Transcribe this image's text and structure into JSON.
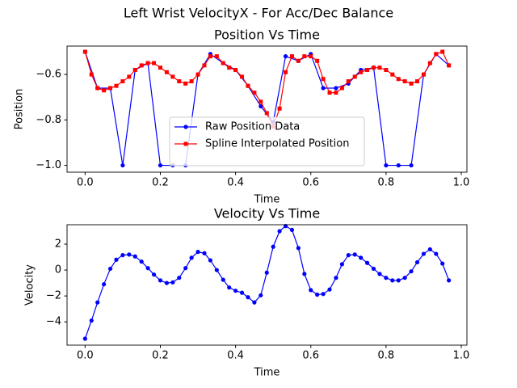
{
  "title": "Left Wrist VelocityX - For Acc/Dec Balance",
  "chart_data": [
    {
      "type": "line",
      "title": "Position Vs Time",
      "x_label": "Time",
      "y_label": "Position",
      "xlim": [
        -0.048,
        1.015
      ],
      "ylim": [
        -1.03,
        -0.475
      ],
      "xticks": [
        {
          "value": 0,
          "label": "0.0"
        },
        0.2,
        0.4,
        0.6,
        0.8,
        {
          "value": 1,
          "label": "1.0"
        }
      ],
      "yticks": [
        {
          "value": -1.0,
          "label": "−1.0"
        },
        {
          "value": -0.8,
          "label": "−0.8"
        },
        {
          "value": -0.6,
          "label": "−0.6"
        }
      ],
      "legend": "lower center",
      "series": [
        {
          "name": "Raw Position Data",
          "color": "#0000ff",
          "marker": "circle",
          "x": [
            0,
            0.033,
            0.067,
            0.1,
            0.133,
            0.167,
            0.2,
            0.233,
            0.267,
            0.3,
            0.333,
            0.367,
            0.4,
            0.433,
            0.467,
            0.5,
            0.533,
            0.567,
            0.6,
            0.633,
            0.667,
            0.7,
            0.733,
            0.767,
            0.8,
            0.833,
            0.867,
            0.9,
            0.933,
            0.967
          ],
          "values": [
            -0.5,
            -0.66,
            -0.66,
            -1.0,
            -0.58,
            -0.55,
            -1.0,
            -1.0,
            -1.0,
            -0.6,
            -0.51,
            -0.55,
            -0.58,
            -0.65,
            -0.74,
            -0.81,
            -0.52,
            -0.54,
            -0.51,
            -0.66,
            -0.66,
            -0.64,
            -0.58,
            -0.57,
            -1.0,
            -1.0,
            -1.0,
            -0.6,
            -0.51,
            -0.56
          ]
        },
        {
          "name": "Spline Interpolated Position",
          "color": "#ff0000",
          "marker": "square",
          "x": [
            0,
            0.017,
            0.033,
            0.05,
            0.067,
            0.083,
            0.1,
            0.117,
            0.133,
            0.15,
            0.167,
            0.183,
            0.2,
            0.217,
            0.233,
            0.25,
            0.267,
            0.283,
            0.3,
            0.317,
            0.333,
            0.35,
            0.367,
            0.383,
            0.4,
            0.417,
            0.433,
            0.45,
            0.467,
            0.483,
            0.5,
            0.517,
            0.533,
            0.55,
            0.567,
            0.583,
            0.6,
            0.617,
            0.633,
            0.65,
            0.667,
            0.683,
            0.7,
            0.717,
            0.733,
            0.75,
            0.767,
            0.783,
            0.8,
            0.817,
            0.833,
            0.85,
            0.867,
            0.883,
            0.9,
            0.917,
            0.933,
            0.95,
            0.967
          ],
          "values": [
            -0.5,
            -0.6,
            -0.66,
            -0.67,
            -0.66,
            -0.65,
            -0.63,
            -0.61,
            -0.58,
            -0.56,
            -0.55,
            -0.55,
            -0.57,
            -0.59,
            -0.61,
            -0.63,
            -0.64,
            -0.63,
            -0.6,
            -0.56,
            -0.52,
            -0.52,
            -0.55,
            -0.57,
            -0.58,
            -0.61,
            -0.65,
            -0.68,
            -0.72,
            -0.77,
            -0.83,
            -0.75,
            -0.59,
            -0.52,
            -0.54,
            -0.52,
            -0.52,
            -0.54,
            -0.62,
            -0.68,
            -0.68,
            -0.66,
            -0.63,
            -0.61,
            -0.59,
            -0.58,
            -0.57,
            -0.57,
            -0.58,
            -0.6,
            -0.62,
            -0.63,
            -0.64,
            -0.63,
            -0.6,
            -0.55,
            -0.51,
            -0.5,
            -0.56
          ]
        }
      ]
    },
    {
      "type": "line",
      "title": "Velocity Vs Time",
      "x_label": "Time",
      "y_label": "Velocity",
      "xlim": [
        -0.048,
        1.015
      ],
      "ylim": [
        -5.8,
        3.5
      ],
      "xticks": [
        {
          "value": 0,
          "label": "0.0"
        },
        0.2,
        0.4,
        0.6,
        0.8,
        {
          "value": 1,
          "label": "1.0"
        }
      ],
      "yticks": [
        {
          "value": -4,
          "label": "−4"
        },
        {
          "value": -2,
          "label": "−2"
        },
        0,
        2
      ],
      "series": [
        {
          "color": "#0000ff",
          "marker": "circle",
          "x": [
            0,
            0.017,
            0.033,
            0.05,
            0.067,
            0.083,
            0.1,
            0.117,
            0.133,
            0.15,
            0.167,
            0.183,
            0.2,
            0.217,
            0.233,
            0.25,
            0.267,
            0.283,
            0.3,
            0.317,
            0.333,
            0.35,
            0.367,
            0.383,
            0.4,
            0.417,
            0.433,
            0.45,
            0.467,
            0.483,
            0.5,
            0.517,
            0.533,
            0.55,
            0.567,
            0.583,
            0.6,
            0.617,
            0.633,
            0.65,
            0.667,
            0.683,
            0.7,
            0.717,
            0.733,
            0.75,
            0.767,
            0.783,
            0.8,
            0.817,
            0.833,
            0.85,
            0.867,
            0.883,
            0.9,
            0.917,
            0.933,
            0.95,
            0.967
          ],
          "values": [
            -5.3,
            -3.9,
            -2.5,
            -1.1,
            0.1,
            0.8,
            1.15,
            1.2,
            1.05,
            0.65,
            0.15,
            -0.35,
            -0.8,
            -1.0,
            -0.95,
            -0.6,
            0.15,
            0.95,
            1.4,
            1.3,
            0.75,
            0.0,
            -0.75,
            -1.35,
            -1.6,
            -1.75,
            -2.1,
            -2.5,
            -1.95,
            -0.2,
            1.8,
            3.0,
            3.4,
            3.1,
            1.7,
            -0.3,
            -1.55,
            -1.9,
            -1.85,
            -1.5,
            -0.6,
            0.45,
            1.15,
            1.2,
            0.95,
            0.55,
            0.1,
            -0.3,
            -0.6,
            -0.8,
            -0.8,
            -0.6,
            -0.1,
            0.6,
            1.25,
            1.6,
            1.25,
            0.5,
            -0.8
          ]
        }
      ]
    }
  ]
}
